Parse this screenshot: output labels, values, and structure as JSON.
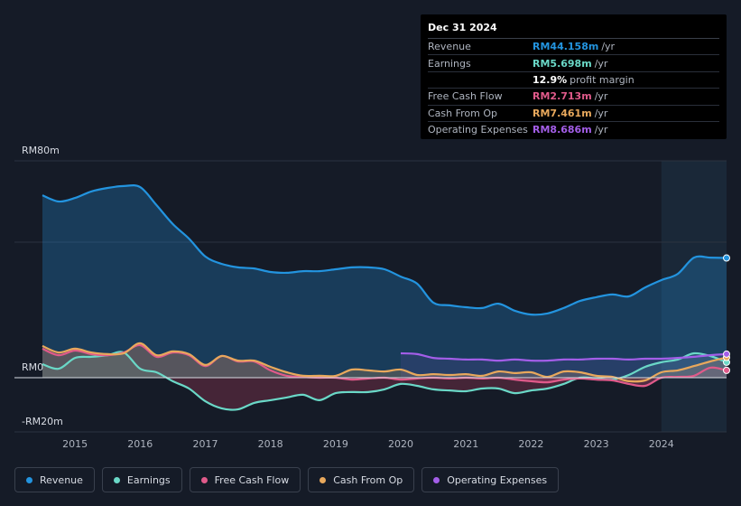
{
  "tooltip": {
    "date": "Dec 31 2024",
    "rows": [
      {
        "label": "Revenue",
        "value": "RM44.158m",
        "unit": "/yr",
        "color": "#2394df"
      },
      {
        "label": "Earnings",
        "value": "RM5.698m",
        "unit": "/yr",
        "color": "#6ad8c7"
      },
      {
        "label": "",
        "value": "12.9%",
        "unit": "profit margin",
        "color": "#ffffff"
      },
      {
        "label": "Free Cash Flow",
        "value": "RM2.713m",
        "unit": "/yr",
        "color": "#e05a8a"
      },
      {
        "label": "Cash From Op",
        "value": "RM7.461m",
        "unit": "/yr",
        "color": "#e8a85c"
      },
      {
        "label": "Operating Expenses",
        "value": "RM8.686m",
        "unit": "/yr",
        "color": "#a35ee8"
      }
    ]
  },
  "legend": [
    {
      "label": "Revenue",
      "color": "#2394df"
    },
    {
      "label": "Earnings",
      "color": "#6ad8c7"
    },
    {
      "label": "Free Cash Flow",
      "color": "#e05a8a"
    },
    {
      "label": "Cash From Op",
      "color": "#e8a85c"
    },
    {
      "label": "Operating Expenses",
      "color": "#a35ee8"
    }
  ],
  "chart_data": {
    "type": "area",
    "y_tick_labels": [
      "RM80m",
      "RM0",
      "-RM20m"
    ],
    "ylim": [
      -20,
      80
    ],
    "x_tick_labels": [
      "2015",
      "2016",
      "2017",
      "2018",
      "2019",
      "2020",
      "2021",
      "2022",
      "2023",
      "2024"
    ],
    "x_ticks": [
      2015,
      2016,
      2017,
      2018,
      2019,
      2020,
      2021,
      2022,
      2023,
      2024
    ],
    "xlim": [
      2014.5,
      2025.0
    ],
    "highlight_start": 2024.0,
    "series": [
      {
        "name": "Revenue",
        "color": "#2394df",
        "points": [
          [
            2014.5,
            67.3
          ],
          [
            2014.75,
            65.0
          ],
          [
            2015.0,
            66.3
          ],
          [
            2015.25,
            68.7
          ],
          [
            2015.5,
            70.0
          ],
          [
            2015.75,
            70.7
          ],
          [
            2016.0,
            70.3
          ],
          [
            2016.25,
            63.7
          ],
          [
            2016.5,
            56.7
          ],
          [
            2016.75,
            51.3
          ],
          [
            2017.0,
            44.7
          ],
          [
            2017.25,
            42.0
          ],
          [
            2017.5,
            40.7
          ],
          [
            2017.75,
            40.3
          ],
          [
            2018.0,
            39.0
          ],
          [
            2018.25,
            38.7
          ],
          [
            2018.5,
            39.3
          ],
          [
            2018.75,
            39.3
          ],
          [
            2019.0,
            40.0
          ],
          [
            2019.25,
            40.7
          ],
          [
            2019.5,
            40.7
          ],
          [
            2019.75,
            40.0
          ],
          [
            2020.0,
            37.3
          ],
          [
            2020.25,
            34.7
          ],
          [
            2020.5,
            27.7
          ],
          [
            2020.75,
            26.7
          ],
          [
            2021.0,
            26.0
          ],
          [
            2021.25,
            25.7
          ],
          [
            2021.5,
            27.3
          ],
          [
            2021.75,
            24.7
          ],
          [
            2022.0,
            23.3
          ],
          [
            2022.25,
            23.7
          ],
          [
            2022.5,
            25.7
          ],
          [
            2022.75,
            28.3
          ],
          [
            2023.0,
            29.7
          ],
          [
            2023.25,
            30.7
          ],
          [
            2023.5,
            30.0
          ],
          [
            2023.75,
            33.3
          ],
          [
            2024.0,
            36.0
          ],
          [
            2024.25,
            38.3
          ],
          [
            2024.5,
            44.3
          ],
          [
            2024.75,
            44.3
          ],
          [
            2025.0,
            44.16
          ]
        ]
      },
      {
        "name": "Earnings",
        "color": "#6ad8c7",
        "points": [
          [
            2014.5,
            5.0
          ],
          [
            2014.75,
            3.3
          ],
          [
            2015.0,
            7.3
          ],
          [
            2015.25,
            7.7
          ],
          [
            2015.5,
            8.3
          ],
          [
            2015.75,
            9.3
          ],
          [
            2016.0,
            3.3
          ],
          [
            2016.25,
            2.0
          ],
          [
            2016.5,
            -1.3
          ],
          [
            2016.75,
            -4.0
          ],
          [
            2017.0,
            -8.7
          ],
          [
            2017.25,
            -11.3
          ],
          [
            2017.5,
            -11.7
          ],
          [
            2017.75,
            -9.3
          ],
          [
            2018.0,
            -8.3
          ],
          [
            2018.25,
            -7.3
          ],
          [
            2018.5,
            -6.3
          ],
          [
            2018.75,
            -8.3
          ],
          [
            2019.0,
            -5.7
          ],
          [
            2019.25,
            -5.3
          ],
          [
            2019.5,
            -5.3
          ],
          [
            2019.75,
            -4.3
          ],
          [
            2020.0,
            -2.3
          ],
          [
            2020.25,
            -3.0
          ],
          [
            2020.5,
            -4.3
          ],
          [
            2020.75,
            -4.7
          ],
          [
            2021.0,
            -5.0
          ],
          [
            2021.25,
            -4.0
          ],
          [
            2021.5,
            -4.0
          ],
          [
            2021.75,
            -5.7
          ],
          [
            2022.0,
            -4.7
          ],
          [
            2022.25,
            -4.0
          ],
          [
            2022.5,
            -2.3
          ],
          [
            2022.75,
            0.0
          ],
          [
            2023.0,
            -0.3
          ],
          [
            2023.25,
            -0.7
          ],
          [
            2023.5,
            1.0
          ],
          [
            2023.75,
            4.0
          ],
          [
            2024.0,
            5.7
          ],
          [
            2024.25,
            6.7
          ],
          [
            2024.5,
            9.0
          ],
          [
            2024.75,
            8.0
          ],
          [
            2025.0,
            5.7
          ]
        ]
      },
      {
        "name": "Free Cash Flow",
        "color": "#e05a8a",
        "points": [
          [
            2014.5,
            10.7
          ],
          [
            2014.75,
            8.3
          ],
          [
            2015.0,
            10.0
          ],
          [
            2015.25,
            8.7
          ],
          [
            2015.5,
            8.3
          ],
          [
            2015.75,
            9.3
          ],
          [
            2016.0,
            12.0
          ],
          [
            2016.25,
            7.7
          ],
          [
            2016.5,
            9.3
          ],
          [
            2016.75,
            8.3
          ],
          [
            2017.0,
            4.3
          ],
          [
            2017.25,
            8.0
          ],
          [
            2017.5,
            6.0
          ],
          [
            2017.75,
            6.0
          ],
          [
            2018.0,
            2.7
          ],
          [
            2018.25,
            0.7
          ],
          [
            2018.5,
            0.3
          ],
          [
            2018.75,
            0.0
          ],
          [
            2019.0,
            0.0
          ],
          [
            2019.25,
            -0.7
          ],
          [
            2019.5,
            -0.3
          ],
          [
            2019.75,
            0.0
          ],
          [
            2020.0,
            -0.7
          ],
          [
            2020.25,
            -0.3
          ],
          [
            2020.5,
            0.0
          ],
          [
            2020.75,
            -0.3
          ],
          [
            2021.0,
            0.0
          ],
          [
            2021.25,
            -0.3
          ],
          [
            2021.5,
            0.0
          ],
          [
            2021.75,
            -0.7
          ],
          [
            2022.0,
            -1.3
          ],
          [
            2022.25,
            -1.7
          ],
          [
            2022.5,
            -0.7
          ],
          [
            2022.75,
            -0.3
          ],
          [
            2023.0,
            -0.7
          ],
          [
            2023.25,
            -1.0
          ],
          [
            2023.5,
            -2.3
          ],
          [
            2023.75,
            -3.0
          ],
          [
            2024.0,
            0.0
          ],
          [
            2024.25,
            0.3
          ],
          [
            2024.5,
            0.7
          ],
          [
            2024.75,
            3.7
          ],
          [
            2025.0,
            2.71
          ]
        ]
      },
      {
        "name": "Cash From Op",
        "color": "#e8a85c",
        "points": [
          [
            2014.5,
            11.7
          ],
          [
            2014.75,
            9.3
          ],
          [
            2015.0,
            10.7
          ],
          [
            2015.25,
            9.3
          ],
          [
            2015.5,
            8.7
          ],
          [
            2015.75,
            9.0
          ],
          [
            2016.0,
            12.7
          ],
          [
            2016.25,
            8.3
          ],
          [
            2016.5,
            9.7
          ],
          [
            2016.75,
            8.7
          ],
          [
            2017.0,
            4.7
          ],
          [
            2017.25,
            8.0
          ],
          [
            2017.5,
            6.3
          ],
          [
            2017.75,
            6.3
          ],
          [
            2018.0,
            4.0
          ],
          [
            2018.25,
            2.0
          ],
          [
            2018.5,
            0.7
          ],
          [
            2018.75,
            0.7
          ],
          [
            2019.0,
            0.7
          ],
          [
            2019.25,
            3.0
          ],
          [
            2019.5,
            2.7
          ],
          [
            2019.75,
            2.3
          ],
          [
            2020.0,
            3.0
          ],
          [
            2020.25,
            1.0
          ],
          [
            2020.5,
            1.3
          ],
          [
            2020.75,
            1.0
          ],
          [
            2021.0,
            1.3
          ],
          [
            2021.25,
            0.7
          ],
          [
            2021.5,
            2.3
          ],
          [
            2021.75,
            1.7
          ],
          [
            2022.0,
            2.0
          ],
          [
            2022.25,
            0.3
          ],
          [
            2022.5,
            2.3
          ],
          [
            2022.75,
            2.0
          ],
          [
            2023.0,
            0.7
          ],
          [
            2023.25,
            0.3
          ],
          [
            2023.5,
            -1.3
          ],
          [
            2023.75,
            -1.0
          ],
          [
            2024.0,
            2.0
          ],
          [
            2024.25,
            2.7
          ],
          [
            2024.5,
            4.3
          ],
          [
            2024.75,
            6.0
          ],
          [
            2025.0,
            7.46
          ]
        ]
      },
      {
        "name": "Operating Expenses",
        "color": "#a35ee8",
        "points": [
          [
            2020.0,
            9.0
          ],
          [
            2020.25,
            8.7
          ],
          [
            2020.5,
            7.3
          ],
          [
            2020.75,
            7.0
          ],
          [
            2021.0,
            6.7
          ],
          [
            2021.25,
            6.7
          ],
          [
            2021.5,
            6.3
          ],
          [
            2021.75,
            6.7
          ],
          [
            2022.0,
            6.3
          ],
          [
            2022.25,
            6.3
          ],
          [
            2022.5,
            6.7
          ],
          [
            2022.75,
            6.7
          ],
          [
            2023.0,
            7.0
          ],
          [
            2023.25,
            7.0
          ],
          [
            2023.5,
            6.7
          ],
          [
            2023.75,
            7.0
          ],
          [
            2024.0,
            7.0
          ],
          [
            2024.25,
            7.3
          ],
          [
            2024.5,
            7.7
          ],
          [
            2024.75,
            8.3
          ],
          [
            2025.0,
            8.69
          ]
        ]
      }
    ]
  }
}
